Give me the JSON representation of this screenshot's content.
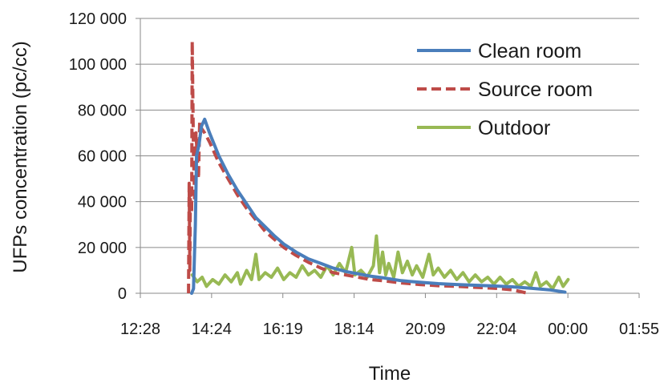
{
  "chart_data": {
    "type": "line",
    "title": "",
    "xlabel": "Time",
    "ylabel": "UFPs concentration (pc/cc)",
    "ylim": [
      0,
      120000
    ],
    "xlim_minutes": [
      748,
      1555
    ],
    "x_ticks": [
      "12:28",
      "14:24",
      "16:19",
      "18:14",
      "20:09",
      "22:04",
      "00:00",
      "01:55"
    ],
    "y_ticks": [
      "0",
      "20 000",
      "40 000",
      "60 000",
      "80 000",
      "100 000",
      "120 000"
    ],
    "grid": {
      "horizontal": true,
      "vertical": false
    },
    "legend_position": "top-right",
    "series": [
      {
        "name": "Clean room",
        "color": "#4a7ebb",
        "style": "solid",
        "points": [
          [
            "13:51",
            0
          ],
          [
            "13:54",
            2000
          ],
          [
            "13:57",
            30000
          ],
          [
            "13:59",
            60000
          ],
          [
            "14:03",
            65000
          ],
          [
            "14:07",
            73000
          ],
          [
            "14:12",
            76000
          ],
          [
            "14:20",
            70000
          ],
          [
            "14:35",
            60000
          ],
          [
            "14:50",
            52000
          ],
          [
            "15:05",
            45000
          ],
          [
            "15:20",
            39000
          ],
          [
            "15:35",
            33000
          ],
          [
            "15:50",
            29000
          ],
          [
            "16:05",
            25000
          ],
          [
            "16:20",
            21500
          ],
          [
            "16:40",
            18000
          ],
          [
            "17:00",
            15000
          ],
          [
            "17:20",
            13000
          ],
          [
            "17:40",
            11000
          ],
          [
            "18:00",
            9500
          ],
          [
            "18:20",
            8500
          ],
          [
            "18:40",
            7500
          ],
          [
            "19:00",
            6800
          ],
          [
            "19:30",
            5500
          ],
          [
            "20:00",
            4800
          ],
          [
            "20:30",
            4200
          ],
          [
            "21:00",
            3800
          ],
          [
            "21:30",
            3500
          ],
          [
            "22:00",
            3200
          ],
          [
            "22:30",
            2800
          ],
          [
            "23:00",
            2200
          ],
          [
            "23:30",
            1500
          ],
          [
            "23:55",
            500
          ]
        ]
      },
      {
        "name": "Source room",
        "color": "#be4b48",
        "style": "dashed",
        "points": [
          [
            "13:46",
            0
          ],
          [
            "13:47",
            48000
          ],
          [
            "13:48",
            10000
          ],
          [
            "13:49",
            45000
          ],
          [
            "13:51",
            35000
          ],
          [
            "13:52",
            110000
          ],
          [
            "13:54",
            60000
          ],
          [
            "13:56",
            40000
          ],
          [
            "13:58",
            70000
          ],
          [
            "14:00",
            60000
          ],
          [
            "14:02",
            50000
          ],
          [
            "14:04",
            75000
          ],
          [
            "14:07",
            72000
          ],
          [
            "14:12",
            70000
          ],
          [
            "14:20",
            66000
          ],
          [
            "14:35",
            57000
          ],
          [
            "14:50",
            50000
          ],
          [
            "15:05",
            43000
          ],
          [
            "15:20",
            37000
          ],
          [
            "15:35",
            32000
          ],
          [
            "15:50",
            27000
          ],
          [
            "16:05",
            23500
          ],
          [
            "16:20",
            20000
          ],
          [
            "16:40",
            16500
          ],
          [
            "17:00",
            13500
          ],
          [
            "17:20",
            11000
          ],
          [
            "17:40",
            9000
          ],
          [
            "18:00",
            8000
          ],
          [
            "18:20",
            7000
          ],
          [
            "18:40",
            6000
          ],
          [
            "19:00",
            5500
          ],
          [
            "19:30",
            4500
          ],
          [
            "20:00",
            3800
          ],
          [
            "20:30",
            3300
          ],
          [
            "21:00",
            3000
          ],
          [
            "21:30",
            2600
          ],
          [
            "22:00",
            2200
          ],
          [
            "22:30",
            1500
          ],
          [
            "22:55",
            0
          ]
        ]
      },
      {
        "name": "Outdoor",
        "color": "#98b954",
        "style": "solid",
        "points": [
          [
            "13:52",
            8000
          ],
          [
            "14:00",
            5000
          ],
          [
            "14:08",
            7000
          ],
          [
            "14:15",
            3000
          ],
          [
            "14:25",
            6000
          ],
          [
            "14:35",
            4000
          ],
          [
            "14:45",
            8000
          ],
          [
            "14:55",
            5000
          ],
          [
            "15:05",
            9000
          ],
          [
            "15:10",
            4000
          ],
          [
            "15:20",
            10000
          ],
          [
            "15:28",
            6000
          ],
          [
            "15:35",
            17000
          ],
          [
            "15:40",
            6000
          ],
          [
            "15:50",
            9000
          ],
          [
            "16:00",
            7000
          ],
          [
            "16:10",
            11000
          ],
          [
            "16:20",
            6000
          ],
          [
            "16:30",
            9000
          ],
          [
            "16:40",
            7000
          ],
          [
            "16:50",
            12000
          ],
          [
            "17:00",
            8000
          ],
          [
            "17:10",
            10000
          ],
          [
            "17:20",
            7000
          ],
          [
            "17:30",
            12000
          ],
          [
            "17:40",
            8000
          ],
          [
            "17:50",
            13000
          ],
          [
            "18:00",
            9000
          ],
          [
            "18:10",
            20000
          ],
          [
            "18:15",
            8000
          ],
          [
            "18:25",
            10000
          ],
          [
            "18:35",
            7000
          ],
          [
            "18:45",
            12000
          ],
          [
            "18:50",
            25000
          ],
          [
            "18:55",
            9000
          ],
          [
            "19:00",
            18000
          ],
          [
            "19:05",
            8000
          ],
          [
            "19:10",
            13000
          ],
          [
            "19:18",
            7000
          ],
          [
            "19:25",
            18000
          ],
          [
            "19:32",
            9000
          ],
          [
            "19:40",
            14000
          ],
          [
            "19:48",
            8000
          ],
          [
            "19:55",
            12000
          ],
          [
            "20:05",
            7000
          ],
          [
            "20:15",
            17000
          ],
          [
            "20:22",
            8000
          ],
          [
            "20:30",
            11000
          ],
          [
            "20:40",
            7000
          ],
          [
            "20:50",
            10000
          ],
          [
            "21:00",
            6000
          ],
          [
            "21:10",
            9000
          ],
          [
            "21:20",
            5000
          ],
          [
            "21:30",
            8000
          ],
          [
            "21:40",
            5000
          ],
          [
            "21:50",
            7000
          ],
          [
            "22:00",
            4000
          ],
          [
            "22:10",
            7000
          ],
          [
            "22:20",
            4000
          ],
          [
            "22:30",
            6000
          ],
          [
            "22:40",
            3000
          ],
          [
            "22:50",
            5000
          ],
          [
            "23:00",
            3000
          ],
          [
            "23:08",
            9000
          ],
          [
            "23:15",
            3000
          ],
          [
            "23:25",
            5000
          ],
          [
            "23:35",
            2000
          ],
          [
            "23:45",
            7000
          ],
          [
            "23:52",
            3000
          ],
          [
            "24:00",
            6000
          ]
        ]
      }
    ]
  }
}
